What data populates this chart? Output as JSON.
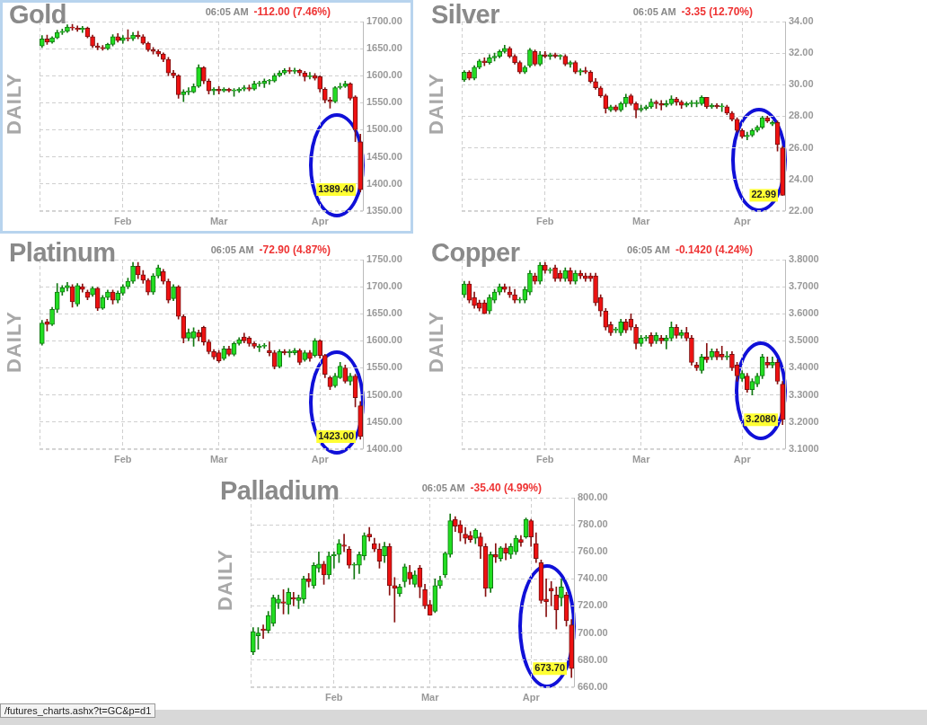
{
  "chart_data": [
    {
      "type": "candlestick",
      "title": "Gold",
      "subtitle": "06:05 AM",
      "ylabel": "DAILY",
      "annotations": [
        "-112.00 (7.46%)",
        {
          "text": "1389.40",
          "y": 1389.4
        }
      ],
      "grid": true,
      "categories": [
        null,
        null,
        null,
        null,
        null,
        null,
        null,
        null,
        null,
        null,
        null,
        null,
        null,
        null,
        null,
        null,
        "Feb",
        null,
        null,
        null,
        null,
        null,
        null,
        null,
        null,
        null,
        null,
        null,
        null,
        null,
        null,
        null,
        null,
        null,
        null,
        "Mar",
        null,
        null,
        null,
        null,
        null,
        null,
        null,
        null,
        null,
        null,
        null,
        null,
        null,
        null,
        null,
        null,
        null,
        null,
        null,
        "Apr",
        null,
        null,
        null,
        null,
        null,
        null,
        null,
        null
      ],
      "ylim": [
        1350,
        1700
      ],
      "yticks": [
        {
          "value": 1350,
          "label": "1350.00"
        },
        {
          "value": 1400,
          "label": "1400.00"
        },
        {
          "value": 1450,
          "label": "1450.00"
        },
        {
          "value": 1500,
          "label": "1500.00"
        },
        {
          "value": 1550,
          "label": "1550.00"
        },
        {
          "value": 1600,
          "label": "1600.00"
        },
        {
          "value": 1650,
          "label": "1650.00"
        },
        {
          "value": 1700,
          "label": "1700.00"
        }
      ],
      "ohlc": [
        [
          1655,
          1674,
          1652,
          1668
        ],
        [
          1668,
          1675,
          1658,
          1662
        ],
        [
          1662,
          1672,
          1660,
          1670
        ],
        [
          1670,
          1684,
          1668,
          1680
        ],
        [
          1680,
          1686,
          1676,
          1682
        ],
        [
          1682,
          1694,
          1680,
          1690
        ],
        [
          1690,
          1695,
          1684,
          1688
        ],
        [
          1688,
          1692,
          1682,
          1685
        ],
        [
          1685,
          1691,
          1680,
          1688
        ],
        [
          1688,
          1690,
          1670,
          1672
        ],
        [
          1672,
          1675,
          1652,
          1655
        ],
        [
          1655,
          1660,
          1648,
          1652
        ],
        [
          1652,
          1656,
          1647,
          1650
        ],
        [
          1650,
          1660,
          1648,
          1658
        ],
        [
          1658,
          1676,
          1655,
          1672
        ],
        [
          1672,
          1678,
          1662,
          1665
        ],
        [
          1665,
          1674,
          1660,
          1670
        ],
        [
          1670,
          1685,
          1664,
          1668
        ],
        [
          1668,
          1680,
          1665,
          1675
        ],
        [
          1675,
          1682,
          1668,
          1672
        ],
        [
          1672,
          1676,
          1658,
          1660
        ],
        [
          1660,
          1662,
          1645,
          1648
        ],
        [
          1648,
          1652,
          1640,
          1645
        ],
        [
          1645,
          1648,
          1636,
          1640
        ],
        [
          1640,
          1642,
          1626,
          1630
        ],
        [
          1630,
          1634,
          1600,
          1605
        ],
        [
          1605,
          1610,
          1596,
          1600
        ],
        [
          1600,
          1602,
          1558,
          1565
        ],
        [
          1565,
          1574,
          1552,
          1570
        ],
        [
          1570,
          1578,
          1565,
          1570
        ],
        [
          1570,
          1585,
          1568,
          1580
        ],
        [
          1580,
          1620,
          1578,
          1615
        ],
        [
          1615,
          1617,
          1585,
          1590
        ],
        [
          1590,
          1594,
          1566,
          1572
        ],
        [
          1572,
          1578,
          1565,
          1575
        ],
        [
          1575,
          1580,
          1566,
          1572
        ],
        [
          1572,
          1578,
          1570,
          1575
        ],
        [
          1575,
          1577,
          1570,
          1572
        ],
        [
          1572,
          1576,
          1562,
          1572
        ],
        [
          1572,
          1578,
          1569,
          1575
        ],
        [
          1575,
          1582,
          1572,
          1578
        ],
        [
          1578,
          1583,
          1572,
          1575
        ],
        [
          1575,
          1590,
          1573,
          1585
        ],
        [
          1585,
          1590,
          1580,
          1585
        ],
        [
          1585,
          1594,
          1578,
          1590
        ],
        [
          1590,
          1593,
          1584,
          1590
        ],
        [
          1590,
          1604,
          1588,
          1600
        ],
        [
          1600,
          1609,
          1598,
          1605
        ],
        [
          1605,
          1613,
          1602,
          1610
        ],
        [
          1610,
          1615,
          1604,
          1608
        ],
        [
          1608,
          1614,
          1604,
          1610
        ],
        [
          1610,
          1612,
          1600,
          1605
        ],
        [
          1605,
          1608,
          1590,
          1598
        ],
        [
          1598,
          1606,
          1594,
          1600
        ],
        [
          1600,
          1604,
          1592,
          1595
        ],
        [
          1598,
          1600,
          1570,
          1575
        ],
        [
          1575,
          1578,
          1550,
          1555
        ],
        [
          1555,
          1560,
          1540,
          1552
        ],
        [
          1552,
          1580,
          1550,
          1578
        ],
        [
          1578,
          1586,
          1575,
          1580
        ],
        [
          1580,
          1590,
          1578,
          1585
        ],
        [
          1585,
          1587,
          1555,
          1558
        ],
        [
          1561,
          1563,
          1478,
          1500
        ],
        [
          1478,
          1492,
          1385,
          1389.4
        ]
      ]
    },
    {
      "type": "candlestick",
      "title": "Silver",
      "subtitle": "06:05 AM",
      "ylabel": "DAILY",
      "annotations": [
        "-3.35 (12.70%)",
        {
          "text": "22.99",
          "y": 22.99
        }
      ],
      "grid": true,
      "categories": [
        null,
        null,
        null,
        null,
        null,
        null,
        null,
        null,
        null,
        null,
        null,
        null,
        null,
        null,
        null,
        null,
        "Feb",
        null,
        null,
        null,
        null,
        null,
        null,
        null,
        null,
        null,
        null,
        null,
        null,
        null,
        null,
        null,
        null,
        null,
        null,
        "Mar",
        null,
        null,
        null,
        null,
        null,
        null,
        null,
        null,
        null,
        null,
        null,
        null,
        null,
        null,
        null,
        null,
        null,
        null,
        null,
        "Apr",
        null,
        null,
        null,
        null,
        null,
        null,
        null,
        null
      ],
      "ylim": [
        22,
        34
      ],
      "yticks": [
        {
          "value": 22,
          "label": "22.00"
        },
        {
          "value": 24,
          "label": "24.00"
        },
        {
          "value": 26,
          "label": "26.00"
        },
        {
          "value": 28,
          "label": "28.00"
        },
        {
          "value": 30,
          "label": "30.00"
        },
        {
          "value": 32,
          "label": "32.00"
        },
        {
          "value": 34,
          "label": "34.00"
        }
      ],
      "ohlc": [
        [
          30.3,
          30.9,
          30.2,
          30.8
        ],
        [
          30.8,
          30.9,
          30.3,
          30.4
        ],
        [
          30.4,
          31.2,
          30.3,
          31.1
        ],
        [
          31.1,
          31.6,
          31.0,
          31.5
        ],
        [
          31.5,
          31.7,
          31.2,
          31.4
        ],
        [
          31.4,
          31.9,
          31.3,
          31.7
        ],
        [
          31.7,
          32.0,
          31.5,
          31.8
        ],
        [
          31.8,
          32.2,
          31.7,
          32.1
        ],
        [
          32.1,
          32.5,
          32.0,
          32.3
        ],
        [
          32.3,
          32.4,
          31.7,
          31.8
        ],
        [
          31.8,
          31.9,
          31.3,
          31.4
        ],
        [
          31.4,
          31.5,
          30.7,
          30.8
        ],
        [
          30.8,
          31.2,
          30.7,
          31.1
        ],
        [
          31.2,
          32.3,
          31.1,
          32.2
        ],
        [
          32.1,
          32.2,
          31.2,
          31.3
        ],
        [
          31.3,
          32.1,
          31.2,
          31.9
        ],
        [
          31.9,
          32.1,
          31.7,
          31.8
        ],
        [
          31.8,
          32.0,
          31.6,
          31.9
        ],
        [
          31.9,
          32.0,
          31.7,
          31.8
        ],
        [
          31.8,
          31.9,
          31.6,
          31.8
        ],
        [
          31.8,
          31.9,
          31.2,
          31.3
        ],
        [
          31.3,
          31.5,
          31.1,
          31.4
        ],
        [
          31.4,
          31.5,
          30.7,
          30.8
        ],
        [
          30.8,
          31.0,
          30.6,
          30.9
        ],
        [
          30.9,
          31.1,
          30.7,
          30.8
        ],
        [
          30.8,
          30.9,
          30.1,
          30.2
        ],
        [
          30.2,
          30.4,
          29.7,
          29.8
        ],
        [
          29.8,
          29.9,
          29.2,
          29.3
        ],
        [
          29.3,
          29.4,
          28.2,
          28.5
        ],
        [
          28.4,
          28.7,
          28.3,
          28.6
        ],
        [
          28.6,
          28.7,
          28.3,
          28.4
        ],
        [
          28.4,
          28.9,
          28.3,
          28.8
        ],
        [
          28.8,
          29.4,
          28.6,
          29.2
        ],
        [
          29.3,
          29.4,
          28.7,
          28.8
        ],
        [
          28.8,
          28.9,
          27.9,
          28.4
        ],
        [
          28.4,
          28.7,
          28.3,
          28.5
        ],
        [
          28.5,
          28.7,
          28.4,
          28.6
        ],
        [
          28.6,
          29.1,
          28.5,
          28.9
        ],
        [
          28.9,
          29.0,
          28.5,
          28.8
        ],
        [
          28.8,
          29.0,
          28.4,
          28.7
        ],
        [
          28.7,
          29.0,
          28.6,
          28.8
        ],
        [
          28.8,
          29.3,
          28.7,
          29.1
        ],
        [
          29.1,
          29.2,
          28.7,
          28.9
        ],
        [
          28.9,
          29.0,
          28.5,
          28.7
        ],
        [
          28.7,
          28.9,
          28.6,
          28.8
        ],
        [
          28.8,
          29.0,
          28.6,
          28.8
        ],
        [
          28.8,
          29.0,
          28.6,
          28.8
        ],
        [
          28.8,
          29.3,
          28.7,
          29.2
        ],
        [
          29.2,
          29.2,
          28.5,
          28.6
        ],
        [
          28.6,
          28.8,
          28.5,
          28.7
        ],
        [
          28.7,
          28.8,
          28.5,
          28.6
        ],
        [
          28.6,
          28.8,
          28.3,
          28.6
        ],
        [
          28.6,
          28.7,
          28.1,
          28.2
        ],
        [
          28.2,
          28.3,
          27.7,
          27.8
        ],
        [
          27.8,
          27.9,
          27.0,
          27.1
        ],
        [
          27.1,
          27.2,
          26.6,
          26.7
        ],
        [
          26.7,
          27.0,
          26.5,
          26.8
        ],
        [
          26.8,
          27.2,
          26.7,
          27.1
        ],
        [
          27.1,
          27.4,
          27.0,
          27.3
        ],
        [
          27.3,
          28.0,
          27.2,
          27.9
        ],
        [
          27.9,
          28.0,
          27.6,
          27.7
        ],
        [
          27.5,
          27.7,
          27.4,
          27.6
        ],
        [
          27.6,
          27.7,
          25.8,
          26.2
        ],
        [
          26.0,
          26.1,
          22.99,
          22.99
        ]
      ]
    },
    {
      "type": "candlestick",
      "title": "Platinum",
      "subtitle": "06:05 AM",
      "ylabel": "DAILY",
      "annotations": [
        "-72.90 (4.87%)",
        {
          "text": "1423.00",
          "y": 1423
        }
      ],
      "grid": true,
      "categories": [
        null,
        null,
        null,
        null,
        null,
        null,
        null,
        null,
        null,
        null,
        null,
        null,
        null,
        null,
        null,
        null,
        "Feb",
        null,
        null,
        null,
        null,
        null,
        null,
        null,
        null,
        null,
        null,
        null,
        null,
        null,
        null,
        null,
        null,
        null,
        null,
        "Mar",
        null,
        null,
        null,
        null,
        null,
        null,
        null,
        null,
        null,
        null,
        null,
        null,
        null,
        null,
        null,
        null,
        null,
        null,
        null,
        "Apr",
        null,
        null,
        null,
        null,
        null,
        null,
        null,
        null
      ],
      "ylim": [
        1400,
        1750
      ],
      "yticks": [
        {
          "value": 1400,
          "label": "1400.00"
        },
        {
          "value": 1450,
          "label": "1450.00"
        },
        {
          "value": 1500,
          "label": "1500.00"
        },
        {
          "value": 1550,
          "label": "1550.00"
        },
        {
          "value": 1600,
          "label": "1600.00"
        },
        {
          "value": 1650,
          "label": "1650.00"
        },
        {
          "value": 1700,
          "label": "1700.00"
        },
        {
          "value": 1750,
          "label": "1750.00"
        }
      ],
      "ohlc": [
        [
          1595,
          1638,
          1592,
          1633
        ],
        [
          1635,
          1640,
          1618,
          1630
        ],
        [
          1630,
          1662,
          1628,
          1658
        ],
        [
          1658,
          1706,
          1652,
          1690
        ],
        [
          1690,
          1702,
          1684,
          1698
        ],
        [
          1698,
          1708,
          1692,
          1702
        ],
        [
          1700,
          1704,
          1662,
          1672
        ],
        [
          1668,
          1706,
          1664,
          1702
        ],
        [
          1700,
          1705,
          1690,
          1695
        ],
        [
          1690,
          1694,
          1676,
          1680
        ],
        [
          1685,
          1700,
          1682,
          1697
        ],
        [
          1697,
          1699,
          1656,
          1660
        ],
        [
          1660,
          1684,
          1658,
          1680
        ],
        [
          1680,
          1694,
          1676,
          1690
        ],
        [
          1690,
          1694,
          1668,
          1675
        ],
        [
          1675,
          1692,
          1670,
          1688
        ],
        [
          1688,
          1704,
          1684,
          1700
        ],
        [
          1700,
          1716,
          1696,
          1710
        ],
        [
          1710,
          1745,
          1706,
          1738
        ],
        [
          1738,
          1745,
          1715,
          1722
        ],
        [
          1722,
          1730,
          1706,
          1712
        ],
        [
          1712,
          1715,
          1685,
          1690
        ],
        [
          1690,
          1724,
          1686,
          1720
        ],
        [
          1720,
          1740,
          1716,
          1735
        ],
        [
          1728,
          1732,
          1705,
          1710
        ],
        [
          1710,
          1714,
          1670,
          1675
        ],
        [
          1678,
          1704,
          1674,
          1700
        ],
        [
          1700,
          1702,
          1640,
          1645
        ],
        [
          1645,
          1648,
          1596,
          1605
        ],
        [
          1605,
          1622,
          1600,
          1615
        ],
        [
          1605,
          1624,
          1590,
          1617
        ],
        [
          1615,
          1620,
          1600,
          1607
        ],
        [
          1625,
          1627,
          1592,
          1598
        ],
        [
          1598,
          1602,
          1576,
          1580
        ],
        [
          1580,
          1584,
          1566,
          1570
        ],
        [
          1578,
          1582,
          1560,
          1563
        ],
        [
          1567,
          1590,
          1564,
          1585
        ],
        [
          1585,
          1590,
          1572,
          1575
        ],
        [
          1575,
          1598,
          1572,
          1595
        ],
        [
          1595,
          1606,
          1592,
          1602
        ],
        [
          1607,
          1614,
          1596,
          1600
        ],
        [
          1605,
          1608,
          1590,
          1595
        ],
        [
          1595,
          1598,
          1586,
          1590
        ],
        [
          1588,
          1594,
          1580,
          1590
        ],
        [
          1590,
          1595,
          1586,
          1591
        ],
        [
          1582,
          1598,
          1572,
          1578
        ],
        [
          1578,
          1582,
          1548,
          1552
        ],
        [
          1552,
          1584,
          1550,
          1580
        ],
        [
          1580,
          1584,
          1574,
          1578
        ],
        [
          1578,
          1584,
          1570,
          1580
        ],
        [
          1578,
          1586,
          1574,
          1582
        ],
        [
          1582,
          1585,
          1556,
          1560
        ],
        [
          1565,
          1582,
          1562,
          1578
        ],
        [
          1578,
          1582,
          1562,
          1567
        ],
        [
          1573,
          1604,
          1570,
          1600
        ],
        [
          1600,
          1602,
          1568,
          1573
        ],
        [
          1573,
          1575,
          1532,
          1538
        ],
        [
          1532,
          1535,
          1510,
          1515
        ],
        [
          1517,
          1540,
          1514,
          1535
        ],
        [
          1532,
          1560,
          1530,
          1553
        ],
        [
          1550,
          1555,
          1522,
          1525
        ],
        [
          1525,
          1540,
          1518,
          1535
        ],
        [
          1535,
          1538,
          1478,
          1495
        ],
        [
          1480,
          1488,
          1418,
          1423
        ]
      ]
    },
    {
      "type": "candlestick",
      "title": "Copper",
      "subtitle": "06:05 AM",
      "ylabel": "DAILY",
      "annotations": [
        "-0.1420 (4.24%)",
        {
          "text": "3.2080",
          "y": 3.208
        }
      ],
      "grid": true,
      "categories": [
        null,
        null,
        null,
        null,
        null,
        null,
        null,
        null,
        null,
        null,
        null,
        null,
        null,
        null,
        null,
        null,
        "Feb",
        null,
        null,
        null,
        null,
        null,
        null,
        null,
        null,
        null,
        null,
        null,
        null,
        null,
        null,
        null,
        null,
        null,
        null,
        "Mar",
        null,
        null,
        null,
        null,
        null,
        null,
        null,
        null,
        null,
        null,
        null,
        null,
        null,
        null,
        null,
        null,
        null,
        null,
        null,
        "Apr",
        null,
        null,
        null,
        null,
        null,
        null,
        null,
        null
      ],
      "ylim": [
        3.1,
        3.8
      ],
      "yticks": [
        {
          "value": 3.1,
          "label": "3.1000"
        },
        {
          "value": 3.2,
          "label": "3.2000"
        },
        {
          "value": 3.3,
          "label": "3.3000"
        },
        {
          "value": 3.4,
          "label": "3.4000"
        },
        {
          "value": 3.5,
          "label": "3.5000"
        },
        {
          "value": 3.6,
          "label": "3.6000"
        },
        {
          "value": 3.7,
          "label": "3.7000"
        },
        {
          "value": 3.8,
          "label": "3.8000"
        }
      ],
      "ohlc": [
        [
          3.67,
          3.72,
          3.66,
          3.71
        ],
        [
          3.71,
          3.72,
          3.64,
          3.65
        ],
        [
          3.66,
          3.68,
          3.62,
          3.63
        ],
        [
          3.64,
          3.65,
          3.61,
          3.62
        ],
        [
          3.64,
          3.65,
          3.6,
          3.6
        ],
        [
          3.61,
          3.67,
          3.6,
          3.66
        ],
        [
          3.65,
          3.69,
          3.64,
          3.68
        ],
        [
          3.68,
          3.71,
          3.67,
          3.7
        ],
        [
          3.7,
          3.71,
          3.68,
          3.69
        ],
        [
          3.68,
          3.7,
          3.66,
          3.67
        ],
        [
          3.67,
          3.69,
          3.64,
          3.65
        ],
        [
          3.65,
          3.66,
          3.64,
          3.65
        ],
        [
          3.65,
          3.7,
          3.64,
          3.69
        ],
        [
          3.68,
          3.76,
          3.67,
          3.75
        ],
        [
          3.74,
          3.75,
          3.71,
          3.72
        ],
        [
          3.72,
          3.79,
          3.71,
          3.78
        ],
        [
          3.78,
          3.79,
          3.75,
          3.76
        ],
        [
          3.76,
          3.77,
          3.75,
          3.76
        ],
        [
          3.77,
          3.78,
          3.72,
          3.73
        ],
        [
          3.75,
          3.76,
          3.72,
          3.73
        ],
        [
          3.73,
          3.77,
          3.72,
          3.76
        ],
        [
          3.76,
          3.77,
          3.71,
          3.72
        ],
        [
          3.72,
          3.76,
          3.71,
          3.75
        ],
        [
          3.75,
          3.76,
          3.73,
          3.74
        ],
        [
          3.74,
          3.75,
          3.72,
          3.73
        ],
        [
          3.74,
          3.75,
          3.72,
          3.73
        ],
        [
          3.74,
          3.75,
          3.63,
          3.64
        ],
        [
          3.66,
          3.67,
          3.59,
          3.61
        ],
        [
          3.61,
          3.62,
          3.54,
          3.55
        ],
        [
          3.56,
          3.57,
          3.52,
          3.53
        ],
        [
          3.54,
          3.55,
          3.53,
          3.54
        ],
        [
          3.53,
          3.58,
          3.52,
          3.57
        ],
        [
          3.57,
          3.58,
          3.53,
          3.54
        ],
        [
          3.58,
          3.6,
          3.54,
          3.55
        ],
        [
          3.55,
          3.56,
          3.47,
          3.49
        ],
        [
          3.49,
          3.52,
          3.48,
          3.51
        ],
        [
          3.51,
          3.52,
          3.5,
          3.51
        ],
        [
          3.52,
          3.53,
          3.48,
          3.49
        ],
        [
          3.5,
          3.53,
          3.49,
          3.52
        ],
        [
          3.51,
          3.52,
          3.49,
          3.5
        ],
        [
          3.5,
          3.52,
          3.47,
          3.51
        ],
        [
          3.51,
          3.57,
          3.5,
          3.55
        ],
        [
          3.55,
          3.56,
          3.51,
          3.52
        ],
        [
          3.52,
          3.54,
          3.51,
          3.53
        ],
        [
          3.53,
          3.55,
          3.5,
          3.51
        ],
        [
          3.51,
          3.52,
          3.41,
          3.42
        ],
        [
          3.41,
          3.42,
          3.39,
          3.4
        ],
        [
          3.39,
          3.45,
          3.38,
          3.44
        ],
        [
          3.44,
          3.49,
          3.42,
          3.43
        ],
        [
          3.44,
          3.47,
          3.43,
          3.46
        ],
        [
          3.46,
          3.47,
          3.43,
          3.44
        ],
        [
          3.45,
          3.48,
          3.43,
          3.44
        ],
        [
          3.44,
          3.46,
          3.43,
          3.44
        ],
        [
          3.45,
          3.46,
          3.39,
          3.4
        ],
        [
          3.41,
          3.42,
          3.35,
          3.37
        ],
        [
          3.36,
          3.39,
          3.35,
          3.38
        ],
        [
          3.37,
          3.38,
          3.31,
          3.32
        ],
        [
          3.32,
          3.36,
          3.3,
          3.35
        ],
        [
          3.34,
          3.38,
          3.33,
          3.37
        ],
        [
          3.37,
          3.45,
          3.36,
          3.44
        ],
        [
          3.42,
          3.44,
          3.4,
          3.41
        ],
        [
          3.41,
          3.44,
          3.4,
          3.42
        ],
        [
          3.42,
          3.43,
          3.34,
          3.35
        ],
        [
          3.34,
          3.35,
          3.19,
          3.208
        ]
      ]
    },
    {
      "type": "candlestick",
      "title": "Palladium",
      "subtitle": "06:05 AM",
      "ylabel": "DAILY",
      "annotations": [
        "-35.40 (4.99%)",
        {
          "text": "673.70",
          "y": 673.7
        },
        "/futures_charts.ashx?t=GC&p=d1"
      ],
      "grid": true,
      "categories": [
        null,
        null,
        null,
        null,
        null,
        null,
        null,
        null,
        null,
        null,
        null,
        null,
        null,
        null,
        null,
        null,
        "Feb",
        null,
        null,
        null,
        null,
        null,
        null,
        null,
        null,
        null,
        null,
        null,
        null,
        null,
        null,
        null,
        null,
        null,
        null,
        "Mar",
        null,
        null,
        null,
        null,
        null,
        null,
        null,
        null,
        null,
        null,
        null,
        null,
        null,
        null,
        null,
        null,
        null,
        null,
        null,
        "Apr",
        null,
        null,
        null,
        null,
        null,
        null,
        null,
        null
      ],
      "ylim": [
        660,
        800
      ],
      "yticks": [
        {
          "value": 660,
          "label": "660.00"
        },
        {
          "value": 680,
          "label": "680.00"
        },
        {
          "value": 700,
          "label": "700.00"
        },
        {
          "value": 720,
          "label": "720.00"
        },
        {
          "value": 740,
          "label": "740.00"
        },
        {
          "value": 760,
          "label": "760.00"
        },
        {
          "value": 780,
          "label": "780.00"
        },
        {
          "value": 800,
          "label": "800.00"
        }
      ],
      "ohlc": [
        [
          686,
          704,
          684,
          701
        ],
        [
          698,
          704,
          688,
          700
        ],
        [
          703,
          706,
          696,
          702
        ],
        [
          702,
          716,
          700,
          713
        ],
        [
          707,
          728,
          705,
          726
        ],
        [
          722,
          728,
          718,
          725
        ],
        [
          723,
          732,
          714,
          722
        ],
        [
          721,
          733,
          714,
          730
        ],
        [
          726,
          730,
          720,
          725
        ],
        [
          724,
          728,
          718,
          726
        ],
        [
          725,
          742,
          722,
          740
        ],
        [
          740,
          744,
          734,
          738
        ],
        [
          735,
          752,
          733,
          750
        ],
        [
          748,
          760,
          745,
          751
        ],
        [
          751,
          753,
          736,
          743
        ],
        [
          743,
          760,
          740,
          757
        ],
        [
          757,
          760,
          748,
          758
        ],
        [
          758,
          769,
          752,
          766
        ],
        [
          765,
          773,
          760,
          764
        ],
        [
          762,
          764,
          748,
          750
        ],
        [
          750,
          752,
          740,
          750
        ],
        [
          750,
          760,
          744,
          758
        ],
        [
          757,
          774,
          754,
          772
        ],
        [
          773,
          778,
          768,
          771
        ],
        [
          766,
          770,
          760,
          762
        ],
        [
          762,
          766,
          748,
          753
        ],
        [
          757,
          767,
          752,
          764
        ],
        [
          764,
          766,
          728,
          735
        ],
        [
          735,
          741,
          708,
          733
        ],
        [
          729,
          736,
          727,
          734
        ],
        [
          738,
          751,
          734,
          749
        ],
        [
          745,
          750,
          736,
          740
        ],
        [
          736,
          746,
          734,
          743
        ],
        [
          748,
          750,
          726,
          734
        ],
        [
          732,
          736,
          718,
          720
        ],
        [
          721,
          724,
          713,
          713
        ],
        [
          716,
          740,
          715,
          735
        ],
        [
          735,
          742,
          733,
          739
        ],
        [
          743,
          760,
          741,
          759
        ],
        [
          758,
          788,
          756,
          783
        ],
        [
          784,
          786,
          775,
          779
        ],
        [
          780,
          783,
          768,
          774
        ],
        [
          773,
          778,
          766,
          770
        ],
        [
          772,
          775,
          767,
          769
        ],
        [
          770,
          777,
          766,
          776
        ],
        [
          771,
          774,
          755,
          764
        ],
        [
          764,
          766,
          727,
          733
        ],
        [
          733,
          760,
          730,
          758
        ],
        [
          758,
          766,
          752,
          756
        ],
        [
          755,
          764,
          753,
          763
        ],
        [
          763,
          766,
          754,
          759
        ],
        [
          758,
          766,
          755,
          764
        ],
        [
          760,
          772,
          758,
          770
        ],
        [
          769,
          772,
          764,
          767
        ],
        [
          771,
          785,
          770,
          784
        ],
        [
          783,
          784,
          764,
          771
        ],
        [
          766,
          774,
          752,
          755
        ],
        [
          752,
          754,
          722,
          724
        ],
        [
          725,
          740,
          712,
          723
        ],
        [
          733,
          738,
          720,
          731
        ],
        [
          728,
          734,
          703,
          717
        ],
        [
          726,
          740,
          720,
          734
        ],
        [
          728,
          730,
          705,
          709
        ],
        [
          706,
          710,
          667,
          673.7
        ]
      ]
    }
  ]
}
